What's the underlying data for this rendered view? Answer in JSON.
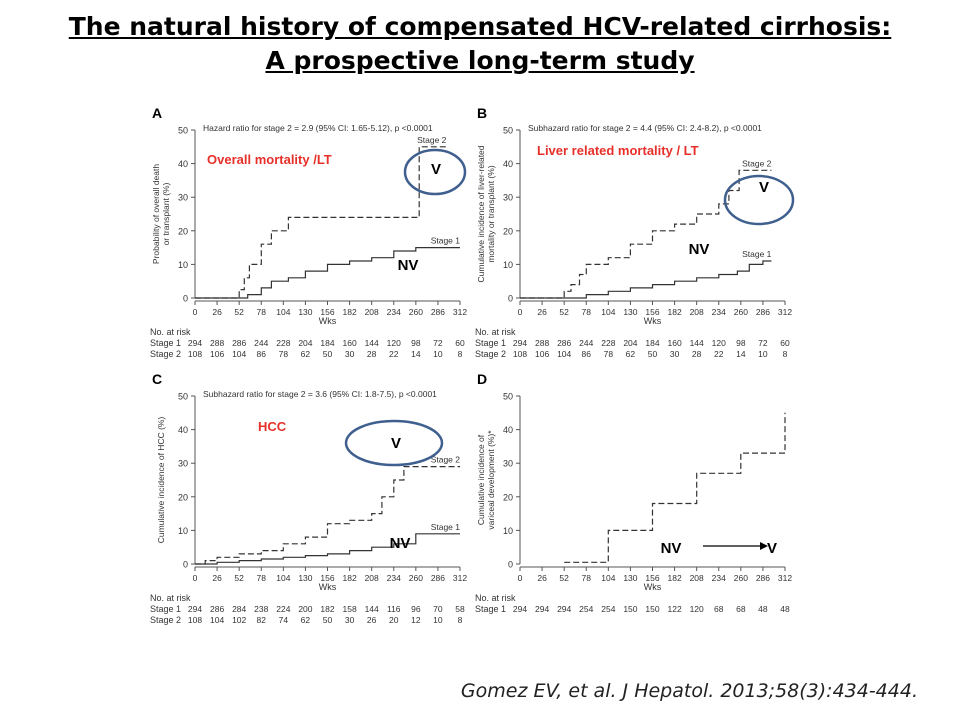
{
  "slide": {
    "title_line1": "The natural history of compensated HCV-related cirrhosis:",
    "title_line2": "A prospective long-term study",
    "citation": "Gomez EV, et al. J Hepatol. 2013;58(3):434-444."
  },
  "colors": {
    "annotation_red": "#e8302a",
    "ellipse_blue": "#3f5f8f",
    "curve": "#333333"
  },
  "risk_header": "No. at risk",
  "chart_data": [
    {
      "id": "A",
      "type": "line",
      "panel_letter": "A",
      "title": "Hazard ratio for stage 2 = 2.9 (95% CI: 1.65-5.12), p <0.0001",
      "ylabel": "Probability of overall death or transplant (%)",
      "xlabel": "Wks",
      "xlim": [
        0,
        312
      ],
      "ylim": [
        0,
        50
      ],
      "xticks": [
        0,
        26,
        52,
        78,
        104,
        130,
        156,
        182,
        208,
        234,
        260,
        286,
        312
      ],
      "yticks": [
        0,
        10,
        20,
        30,
        40,
        50
      ],
      "overlay_label": "Overall mortality /LT",
      "annotation_v": "V",
      "annotation_nv": "NV",
      "series": [
        {
          "name": "Stage 2",
          "dash": "6,3",
          "x": [
            0,
            48,
            52,
            58,
            64,
            78,
            90,
            110,
            130,
            258,
            264,
            296
          ],
          "y": [
            0,
            0,
            2.5,
            6,
            10,
            16,
            20,
            24,
            24,
            24,
            45,
            45
          ]
        },
        {
          "name": "Stage 1",
          "dash": "",
          "x": [
            0,
            52,
            62,
            78,
            90,
            110,
            130,
            156,
            182,
            208,
            234,
            260,
            312
          ],
          "y": [
            0,
            0,
            1,
            3,
            5,
            6,
            8,
            10,
            11,
            12,
            14,
            15,
            15
          ]
        }
      ],
      "risk_table": [
        {
          "label": "Stage 1",
          "values": [
            "294",
            "288",
            "286",
            "244",
            "228",
            "204",
            "184",
            "160",
            "144",
            "120",
            "98",
            "72",
            "60"
          ]
        },
        {
          "label": "Stage 2",
          "values": [
            "108",
            "106",
            "104",
            "86",
            "78",
            "62",
            "50",
            "30",
            "28",
            "22",
            "14",
            "10",
            "8"
          ]
        }
      ]
    },
    {
      "id": "B",
      "type": "line",
      "panel_letter": "B",
      "title": "Subhazard ratio for stage 2 = 4.4 (95% CI: 2.4-8.2), p <0.0001",
      "ylabel": "Cumulative incidence of liver-related mortality or transplant (%)",
      "xlabel": "Wks",
      "xlim": [
        0,
        312
      ],
      "ylim": [
        0,
        50
      ],
      "xticks": [
        0,
        26,
        52,
        78,
        104,
        130,
        156,
        182,
        208,
        234,
        260,
        286,
        312
      ],
      "yticks": [
        0,
        10,
        20,
        30,
        40,
        50
      ],
      "overlay_label": "Liver related mortality / LT",
      "annotation_v": "V",
      "annotation_nv": "NV",
      "series": [
        {
          "name": "Stage 2",
          "dash": "6,3",
          "x": [
            0,
            40,
            52,
            60,
            70,
            78,
            104,
            130,
            156,
            182,
            208,
            234,
            246,
            258,
            296
          ],
          "y": [
            0,
            0,
            2,
            4,
            7,
            10,
            12,
            16,
            20,
            22,
            25,
            28,
            32,
            38,
            38
          ]
        },
        {
          "name": "Stage 1",
          "dash": "",
          "x": [
            0,
            52,
            78,
            104,
            130,
            156,
            182,
            208,
            234,
            256,
            270,
            286,
            296
          ],
          "y": [
            0,
            0,
            1,
            2,
            3,
            4,
            5,
            6,
            7,
            8,
            10,
            11,
            11
          ]
        }
      ],
      "risk_table": [
        {
          "label": "Stage 1",
          "values": [
            "294",
            "288",
            "286",
            "244",
            "228",
            "204",
            "184",
            "160",
            "144",
            "120",
            "98",
            "72",
            "60"
          ]
        },
        {
          "label": "Stage 2",
          "values": [
            "108",
            "106",
            "104",
            "86",
            "78",
            "62",
            "50",
            "30",
            "28",
            "22",
            "14",
            "10",
            "8"
          ]
        }
      ]
    },
    {
      "id": "C",
      "type": "line",
      "panel_letter": "C",
      "title": "Subhazard ratio for stage 2 = 3.6 (95% CI: 1.8-7.5), p <0.0001",
      "ylabel": "Cumulative incidence of HCC (%)",
      "xlabel": "Wks",
      "xlim": [
        0,
        312
      ],
      "ylim": [
        0,
        50
      ],
      "xticks": [
        0,
        26,
        52,
        78,
        104,
        130,
        156,
        182,
        208,
        234,
        260,
        286,
        312
      ],
      "yticks": [
        0,
        10,
        20,
        30,
        40,
        50
      ],
      "overlay_label": "HCC",
      "annotation_v": "V",
      "annotation_nv": "NV",
      "series": [
        {
          "name": "Stage 2",
          "dash": "6,3",
          "x": [
            0,
            12,
            26,
            52,
            78,
            104,
            130,
            156,
            182,
            208,
            220,
            234,
            246,
            260,
            312
          ],
          "y": [
            0,
            1,
            2,
            3,
            4,
            6,
            8,
            12,
            13,
            15,
            20,
            25,
            29,
            29,
            29
          ]
        },
        {
          "name": "Stage 1",
          "dash": "",
          "x": [
            0,
            26,
            52,
            78,
            104,
            130,
            156,
            182,
            208,
            234,
            260,
            312
          ],
          "y": [
            0,
            0.5,
            1,
            1.5,
            2,
            2.5,
            3,
            4,
            5,
            6,
            9,
            9
          ]
        }
      ],
      "risk_table": [
        {
          "label": "Stage 1",
          "values": [
            "294",
            "286",
            "284",
            "238",
            "224",
            "200",
            "182",
            "158",
            "144",
            "116",
            "96",
            "70",
            "58"
          ]
        },
        {
          "label": "Stage 2",
          "values": [
            "108",
            "104",
            "102",
            "82",
            "74",
            "62",
            "50",
            "30",
            "26",
            "20",
            "12",
            "10",
            "8"
          ]
        }
      ]
    },
    {
      "id": "D",
      "type": "line",
      "panel_letter": "D",
      "title": "",
      "ylabel": "Cumulative incidence of variceal development (%)*",
      "xlabel": "Wks",
      "xlim": [
        0,
        312
      ],
      "ylim": [
        0,
        50
      ],
      "xticks": [
        0,
        26,
        52,
        78,
        104,
        130,
        156,
        182,
        208,
        234,
        260,
        286,
        312
      ],
      "yticks": [
        0,
        10,
        20,
        30,
        40,
        50
      ],
      "overlay_label": "",
      "annotation_nv": "NV",
      "annotation_arrow_target": "V",
      "series": [
        {
          "name": "",
          "dash": "6,3",
          "x": [
            52,
            104,
            156,
            208,
            260,
            312,
            312
          ],
          "y": [
            0.5,
            10,
            18,
            27,
            33,
            33,
            45
          ]
        }
      ],
      "risk_table": [
        {
          "label": "Stage 1",
          "values": [
            "294",
            "294",
            "294",
            "254",
            "254",
            "150",
            "150",
            "122",
            "120",
            "68",
            "68",
            "48",
            "48"
          ]
        }
      ]
    }
  ]
}
